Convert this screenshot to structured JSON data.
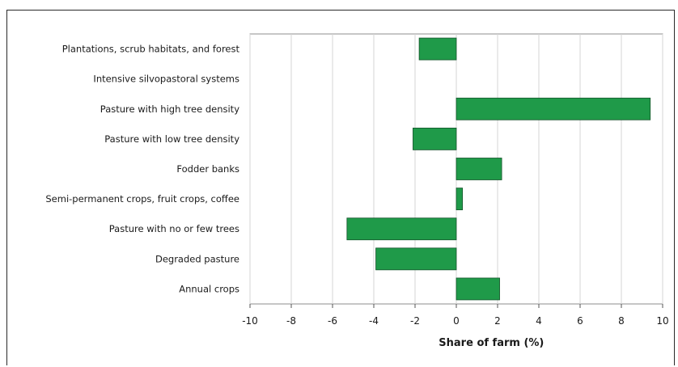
{
  "chart_data": {
    "type": "bar",
    "orientation": "horizontal",
    "categories": [
      "Plantations, scrub habitats, and forest",
      "Intensive silvopastoral systems",
      "Pasture with high tree density",
      "Pasture with low tree density",
      "Fodder banks",
      "Semi-permanent crops, fruit crops, coffee",
      "Pasture with no or few trees",
      "Degraded pasture",
      "Annual crops"
    ],
    "values": [
      -1.8,
      0,
      9.4,
      -2.1,
      2.2,
      0.3,
      -5.3,
      -3.9,
      2.1
    ],
    "title": "",
    "xlabel": "Share of farm (%)",
    "ylabel": "",
    "xlim": [
      -10,
      10
    ],
    "xticks": [
      -10,
      -8,
      -6,
      -4,
      -2,
      0,
      2,
      4,
      6,
      8,
      10
    ],
    "xtick_labels": [
      "-10",
      "-8",
      "-6",
      "-4",
      "-2",
      "0",
      "2",
      "4",
      "6",
      "8",
      "10"
    ],
    "grid": "vertical",
    "legend": "none",
    "bar_color": "#1f9a49",
    "bar_edge_color": "#14532a"
  }
}
